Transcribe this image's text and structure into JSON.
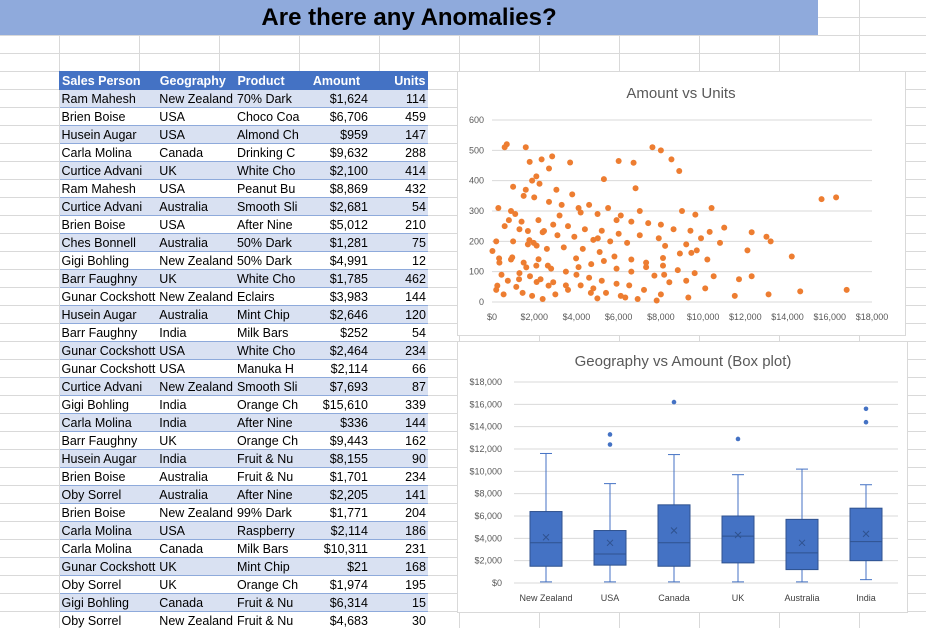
{
  "title": "Are there any Anomalies?",
  "table": {
    "headers": [
      "Sales Person",
      "Geography",
      "Product",
      "Amount",
      "Units"
    ],
    "rows": [
      [
        "Ram Mahesh",
        "New Zealand",
        "70% Dark",
        "$1,624",
        "114"
      ],
      [
        "Brien Boise",
        "USA",
        "Choco Coa",
        "$6,706",
        "459"
      ],
      [
        "Husein Augar",
        "USA",
        "Almond Ch",
        "$959",
        "147"
      ],
      [
        "Carla Molina",
        "Canada",
        "Drinking C",
        "$9,632",
        "288"
      ],
      [
        "Curtice Advani",
        "UK",
        "White Cho",
        "$2,100",
        "414"
      ],
      [
        "Ram Mahesh",
        "USA",
        "Peanut Bu",
        "$8,869",
        "432"
      ],
      [
        "Curtice Advani",
        "Australia",
        "Smooth Sli",
        "$2,681",
        "54"
      ],
      [
        "Brien Boise",
        "USA",
        "After Nine",
        "$5,012",
        "210"
      ],
      [
        "Ches Bonnell",
        "Australia",
        "50% Dark",
        "$1,281",
        "75"
      ],
      [
        "Gigi Bohling",
        "New Zealand",
        "50% Dark",
        "$4,991",
        "12"
      ],
      [
        "Barr Faughny",
        "UK",
        "White Cho",
        "$1,785",
        "462"
      ],
      [
        "Gunar Cockshott",
        "New Zealand",
        "Eclairs",
        "$3,983",
        "144"
      ],
      [
        "Husein Augar",
        "Australia",
        "Mint Chip",
        "$2,646",
        "120"
      ],
      [
        "Barr Faughny",
        "India",
        "Milk Bars",
        "$252",
        "54"
      ],
      [
        "Gunar Cockshott",
        "USA",
        "White Cho",
        "$2,464",
        "234"
      ],
      [
        "Gunar Cockshott",
        "USA",
        "Manuka H",
        "$2,114",
        "66"
      ],
      [
        "Curtice Advani",
        "New Zealand",
        "Smooth Sli",
        "$7,693",
        "87"
      ],
      [
        "Gigi Bohling",
        "India",
        "Orange Ch",
        "$15,610",
        "339"
      ],
      [
        "Carla Molina",
        "India",
        "After Nine",
        "$336",
        "144"
      ],
      [
        "Barr Faughny",
        "UK",
        "Orange Ch",
        "$9,443",
        "162"
      ],
      [
        "Husein Augar",
        "India",
        "Fruit & Nu",
        "$8,155",
        "90"
      ],
      [
        "Brien Boise",
        "Australia",
        "Fruit & Nu",
        "$1,701",
        "234"
      ],
      [
        "Oby Sorrel",
        "Australia",
        "After Nine",
        "$2,205",
        "141"
      ],
      [
        "Brien Boise",
        "New Zealand",
        "99% Dark",
        "$1,771",
        "204"
      ],
      [
        "Carla Molina",
        "USA",
        "Raspberry",
        "$2,114",
        "186"
      ],
      [
        "Carla Molina",
        "Canada",
        "Milk Bars",
        "$10,311",
        "231"
      ],
      [
        "Gunar Cockshott",
        "UK",
        "Mint Chip",
        "$21",
        "168"
      ],
      [
        "Oby Sorrel",
        "UK",
        "Orange Ch",
        "$1,974",
        "195"
      ],
      [
        "Gigi Bohling",
        "Canada",
        "Fruit & Nu",
        "$6,314",
        "15"
      ],
      [
        "Oby Sorrel",
        "New Zealand",
        "Fruit & Nu",
        "$4,683",
        "30"
      ]
    ]
  },
  "colors": {
    "header": "#4472c4",
    "band": "#d9e1f2",
    "scatter": "#ed7d31",
    "box": "#4472c4",
    "banner": "#8faadc"
  },
  "chart_data": [
    {
      "type": "scatter",
      "title": "Amount vs Units",
      "xlabel": "",
      "ylabel": "",
      "xlim": [
        0,
        18000
      ],
      "ylim": [
        0,
        600
      ],
      "xticks": [
        "$0",
        "$2,000",
        "$4,000",
        "$6,000",
        "$8,000",
        "$10,000",
        "$12,000",
        "$14,000",
        "$16,000",
        "$18,000"
      ],
      "yticks": [
        "0",
        "100",
        "200",
        "300",
        "400",
        "500",
        "600"
      ],
      "grid": true,
      "points": [
        [
          1624,
          114
        ],
        [
          6706,
          459
        ],
        [
          959,
          147
        ],
        [
          9632,
          288
        ],
        [
          2100,
          414
        ],
        [
          8869,
          432
        ],
        [
          2681,
          54
        ],
        [
          5012,
          210
        ],
        [
          1281,
          75
        ],
        [
          4991,
          12
        ],
        [
          1785,
          462
        ],
        [
          3983,
          144
        ],
        [
          2646,
          120
        ],
        [
          252,
          54
        ],
        [
          2464,
          234
        ],
        [
          2114,
          66
        ],
        [
          7693,
          87
        ],
        [
          15610,
          339
        ],
        [
          336,
          144
        ],
        [
          9443,
          162
        ],
        [
          8155,
          90
        ],
        [
          1701,
          234
        ],
        [
          2205,
          141
        ],
        [
          1771,
          204
        ],
        [
          2114,
          186
        ],
        [
          10311,
          231
        ],
        [
          21,
          168
        ],
        [
          1974,
          195
        ],
        [
          6314,
          15
        ],
        [
          4683,
          30
        ],
        [
          600,
          510
        ],
        [
          700,
          520
        ],
        [
          1600,
          510
        ],
        [
          2350,
          470
        ],
        [
          2700,
          440
        ],
        [
          2850,
          480
        ],
        [
          3700,
          460
        ],
        [
          6000,
          465
        ],
        [
          7600,
          510
        ],
        [
          8000,
          500
        ],
        [
          8500,
          470
        ],
        [
          1900,
          400
        ],
        [
          2250,
          390
        ],
        [
          5300,
          405
        ],
        [
          6800,
          375
        ],
        [
          3050,
          370
        ],
        [
          3800,
          355
        ],
        [
          1500,
          350
        ],
        [
          2000,
          345
        ],
        [
          4600,
          320
        ],
        [
          5500,
          310
        ],
        [
          7000,
          300
        ],
        [
          9000,
          300
        ],
        [
          10400,
          310
        ],
        [
          16300,
          345
        ],
        [
          300,
          310
        ],
        [
          900,
          300
        ],
        [
          1100,
          290
        ],
        [
          3200,
          285
        ],
        [
          4200,
          295
        ],
        [
          5900,
          270
        ],
        [
          6600,
          265
        ],
        [
          8000,
          255
        ],
        [
          11000,
          245
        ],
        [
          12300,
          230
        ],
        [
          13000,
          215
        ],
        [
          13200,
          200
        ],
        [
          14200,
          150
        ],
        [
          12100,
          170
        ],
        [
          10800,
          195
        ],
        [
          9900,
          210
        ],
        [
          9200,
          190
        ],
        [
          8200,
          185
        ],
        [
          6400,
          195
        ],
        [
          5600,
          200
        ],
        [
          4800,
          205
        ],
        [
          3900,
          215
        ],
        [
          3100,
          220
        ],
        [
          2400,
          230
        ],
        [
          1300,
          240
        ],
        [
          600,
          250
        ],
        [
          200,
          200
        ],
        [
          1000,
          200
        ],
        [
          1700,
          190
        ],
        [
          2600,
          175
        ],
        [
          3400,
          180
        ],
        [
          4300,
          175
        ],
        [
          5100,
          165
        ],
        [
          5800,
          150
        ],
        [
          6600,
          140
        ],
        [
          7300,
          130
        ],
        [
          8100,
          120
        ],
        [
          8800,
          105
        ],
        [
          9600,
          95
        ],
        [
          10500,
          85
        ],
        [
          11700,
          75
        ],
        [
          12300,
          85
        ],
        [
          16800,
          40
        ],
        [
          14600,
          35
        ],
        [
          13100,
          25
        ],
        [
          11500,
          20
        ],
        [
          9300,
          15
        ],
        [
          8000,
          25
        ],
        [
          7200,
          40
        ],
        [
          6500,
          55
        ],
        [
          5900,
          60
        ],
        [
          5200,
          70
        ],
        [
          4600,
          80
        ],
        [
          4000,
          90
        ],
        [
          3500,
          100
        ],
        [
          2800,
          110
        ],
        [
          2100,
          120
        ],
        [
          1500,
          130
        ],
        [
          900,
          140
        ],
        [
          350,
          130
        ],
        [
          450,
          90
        ],
        [
          750,
          70
        ],
        [
          1150,
          50
        ],
        [
          1450,
          30
        ],
        [
          1900,
          20
        ],
        [
          2400,
          10
        ],
        [
          3000,
          25
        ],
        [
          3600,
          40
        ],
        [
          4200,
          55
        ],
        [
          4800,
          45
        ],
        [
          5400,
          30
        ],
        [
          6100,
          20
        ],
        [
          6900,
          10
        ],
        [
          7800,
          5
        ],
        [
          8400,
          65
        ],
        [
          9200,
          70
        ],
        [
          10100,
          45
        ],
        [
          200,
          40
        ],
        [
          550,
          25
        ],
        [
          1300,
          95
        ],
        [
          1800,
          85
        ],
        [
          2300,
          75
        ],
        [
          2900,
          65
        ],
        [
          3500,
          55
        ],
        [
          4100,
          115
        ],
        [
          4700,
          125
        ],
        [
          5300,
          135
        ],
        [
          5900,
          110
        ],
        [
          6600,
          100
        ],
        [
          7300,
          115
        ],
        [
          8100,
          145
        ],
        [
          8900,
          160
        ],
        [
          9700,
          170
        ],
        [
          10200,
          140
        ],
        [
          1000,
          380
        ],
        [
          1600,
          370
        ],
        [
          2700,
          330
        ],
        [
          3300,
          320
        ],
        [
          4100,
          310
        ],
        [
          5000,
          290
        ],
        [
          6100,
          285
        ],
        [
          7400,
          260
        ],
        [
          8600,
          240
        ],
        [
          9400,
          235
        ],
        [
          800,
          270
        ],
        [
          1400,
          265
        ],
        [
          2200,
          270
        ],
        [
          2900,
          255
        ],
        [
          3600,
          250
        ],
        [
          4400,
          240
        ],
        [
          5200,
          235
        ],
        [
          6000,
          225
        ],
        [
          7000,
          220
        ],
        [
          7900,
          210
        ]
      ]
    },
    {
      "type": "box",
      "title": "Geography vs Amount (Box plot)",
      "xlabel": "",
      "ylabel": "",
      "ylim": [
        0,
        18000
      ],
      "yticks": [
        "$0",
        "$2,000",
        "$4,000",
        "$6,000",
        "$8,000",
        "$10,000",
        "$12,000",
        "$14,000",
        "$16,000",
        "$18,000"
      ],
      "categories": [
        "New Zealand",
        "USA",
        "Canada",
        "UK",
        "Australia",
        "India"
      ],
      "boxes": [
        {
          "min": 100,
          "q1": 1500,
          "median": 3600,
          "q3": 6400,
          "max": 11600,
          "mean": 4100,
          "outliers": []
        },
        {
          "min": 100,
          "q1": 1600,
          "median": 2600,
          "q3": 4700,
          "max": 8900,
          "mean": 3600,
          "outliers": [
            12400,
            13300
          ]
        },
        {
          "min": 100,
          "q1": 1500,
          "median": 3600,
          "q3": 7000,
          "max": 11500,
          "mean": 4700,
          "outliers": [
            16200
          ]
        },
        {
          "min": 100,
          "q1": 1800,
          "median": 4200,
          "q3": 6000,
          "max": 9700,
          "mean": 4300,
          "outliers": [
            12900
          ]
        },
        {
          "min": 100,
          "q1": 1200,
          "median": 2700,
          "q3": 5700,
          "max": 10200,
          "mean": 3600,
          "outliers": []
        },
        {
          "min": 300,
          "q1": 2000,
          "median": 3700,
          "q3": 6700,
          "max": 8800,
          "mean": 4400,
          "outliers": [
            14400,
            15600
          ]
        }
      ]
    }
  ]
}
